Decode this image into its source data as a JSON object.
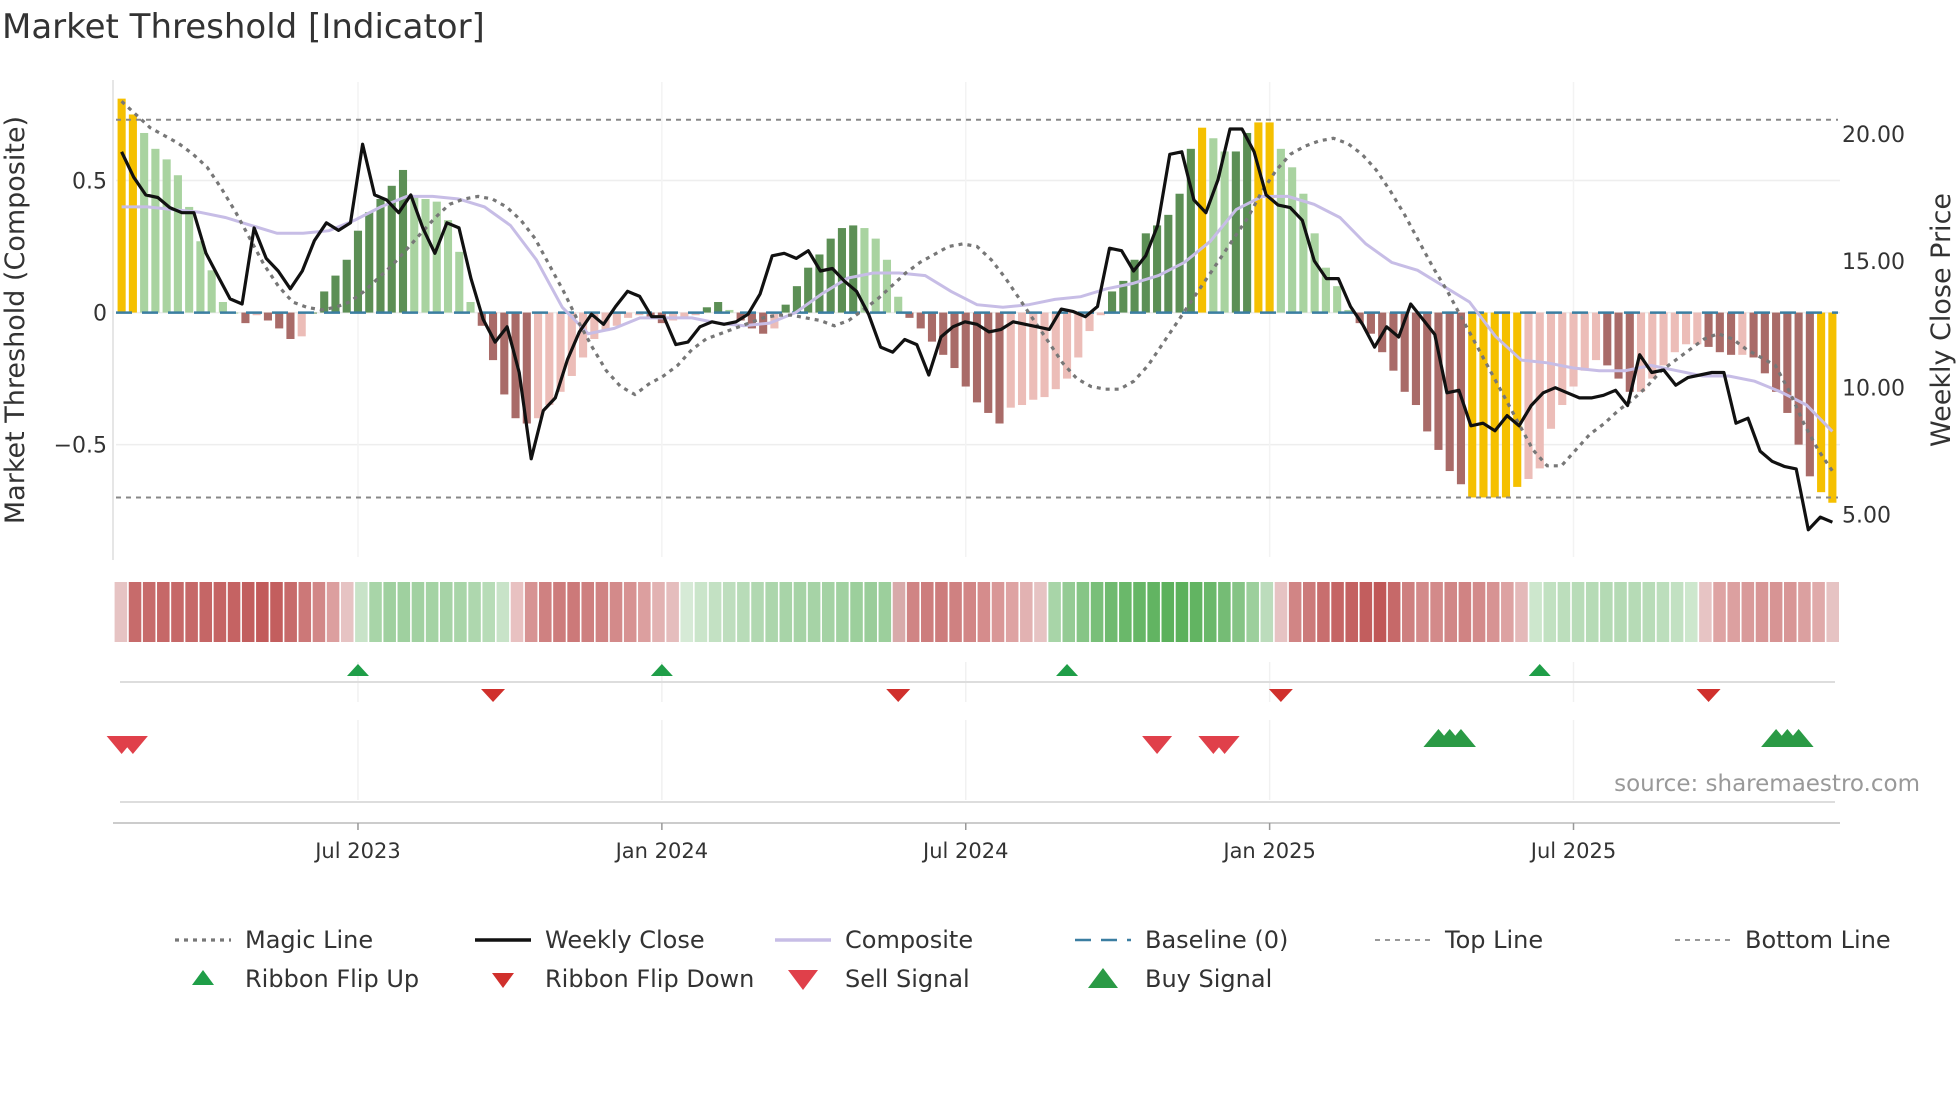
{
  "chart_data": {
    "type": "composite-indicator",
    "title": "Market Threshold [Indicator]",
    "ylabel_left": "Market Threshold (Composite)",
    "ylabel_right": "Weekly Close Price",
    "source": "source: sharemaestro.com",
    "ylim_left": [
      -0.88,
      0.82
    ],
    "ylim_right": [
      3.8,
      21.5
    ],
    "left_ticks": [
      {
        "v": 0.5,
        "label": "0.5"
      },
      {
        "v": 0,
        "label": "0"
      },
      {
        "v": -0.5,
        "label": "−0.5"
      }
    ],
    "right_ticks": [
      {
        "v": 20,
        "label": "20.00"
      },
      {
        "v": 15,
        "label": "15.00"
      },
      {
        "v": 10,
        "label": "10.00"
      },
      {
        "v": 5,
        "label": "5.00"
      }
    ],
    "x_ticks": [
      {
        "i": 21,
        "label": "Jul 2023"
      },
      {
        "i": 48,
        "label": "Jan 2024"
      },
      {
        "i": 75,
        "label": "Jul 2024"
      },
      {
        "i": 102,
        "label": "Jan 2025"
      },
      {
        "i": 129,
        "label": "Jul 2025"
      }
    ],
    "top_line": 0.73,
    "bottom_line": -0.7,
    "composite_bars": [
      0.81,
      0.75,
      0.68,
      0.62,
      0.58,
      0.52,
      0.4,
      0.27,
      0.16,
      0.04,
      0,
      -0.04,
      -0.01,
      -0.03,
      -0.06,
      -0.1,
      -0.09,
      0,
      0.08,
      0.14,
      0.2,
      0.31,
      0.38,
      0.43,
      0.48,
      0.54,
      0.44,
      0.43,
      0.42,
      0.35,
      0.23,
      0.04,
      -0.05,
      -0.18,
      -0.31,
      -0.4,
      -0.42,
      -0.4,
      -0.35,
      -0.3,
      -0.24,
      -0.17,
      -0.1,
      -0.07,
      -0.05,
      -0.02,
      -0.01,
      -0.02,
      -0.04,
      -0.03,
      -0.02,
      -0.01,
      0.02,
      0.04,
      0.01,
      -0.03,
      -0.06,
      -0.08,
      -0.06,
      0.03,
      0.1,
      0.17,
      0.22,
      0.28,
      0.32,
      0.33,
      0.32,
      0.28,
      0.2,
      0.06,
      -0.02,
      -0.06,
      -0.11,
      -0.16,
      -0.21,
      -0.28,
      -0.34,
      -0.38,
      -0.42,
      -0.36,
      -0.35,
      -0.33,
      -0.32,
      -0.29,
      -0.25,
      -0.17,
      -0.07,
      -0.01,
      0.08,
      0.12,
      0.2,
      0.3,
      0.33,
      0.37,
      0.45,
      0.62,
      0.7,
      0.66,
      0.61,
      0.61,
      0.68,
      0.72,
      0.72,
      0.62,
      0.55,
      0.45,
      0.3,
      0.17,
      0.1,
      0.01,
      -0.04,
      -0.08,
      -0.15,
      -0.22,
      -0.3,
      -0.35,
      -0.45,
      -0.52,
      -0.6,
      -0.65,
      -0.7,
      -0.7,
      -0.7,
      -0.7,
      -0.66,
      -0.63,
      -0.59,
      -0.44,
      -0.35,
      -0.28,
      -0.22,
      -0.18,
      -0.2,
      -0.25,
      -0.3,
      -0.3,
      -0.25,
      -0.2,
      -0.15,
      -0.12,
      -0.12,
      -0.13,
      -0.15,
      -0.16,
      -0.16,
      -0.17,
      -0.23,
      -0.3,
      -0.38,
      -0.5,
      -0.62,
      -0.68,
      -0.72
    ],
    "weekly_close": [
      19.3,
      18.3,
      17.6,
      17.5,
      17.1,
      16.9,
      16.9,
      15.3,
      14.4,
      13.5,
      13.3,
      16.3,
      15.1,
      14.6,
      13.9,
      14.6,
      15.8,
      16.5,
      16.2,
      16.5,
      19.6,
      17.6,
      17.4,
      16.9,
      17.6,
      16.3,
      15.3,
      16.5,
      16.3,
      14.3,
      12.7,
      11.8,
      12.4,
      10.6,
      7.2,
      9.1,
      9.6,
      11.1,
      12.2,
      12.9,
      12.5,
      13.2,
      13.8,
      13.6,
      12.8,
      12.8,
      11.7,
      11.8,
      12.4,
      12.6,
      12.5,
      12.6,
      12.9,
      13.7,
      15.2,
      15.3,
      15.1,
      15.4,
      14.6,
      14.7,
      14.2,
      13.8,
      12.9,
      11.6,
      11.4,
      11.9,
      11.7,
      10.5,
      12.0,
      12.4,
      12.6,
      12.5,
      12.2,
      12.3,
      12.6,
      12.5,
      12.4,
      12.3,
      13.1,
      13.0,
      12.8,
      13.2,
      15.5,
      15.4,
      14.6,
      15.2,
      16.4,
      19.2,
      19.3,
      17.4,
      16.9,
      18.2,
      20.2,
      20.2,
      19.3,
      17.6,
      17.2,
      17.1,
      16.6,
      15.0,
      14.3,
      14.3,
      13.2,
      12.5,
      11.6,
      12.4,
      12.0,
      13.3,
      12.7,
      12.1,
      9.8,
      9.9,
      8.5,
      8.6,
      8.3,
      8.9,
      8.5,
      9.3,
      9.8,
      10.0,
      9.8,
      9.6,
      9.6,
      9.7,
      9.9,
      9.3,
      11.3,
      10.6,
      10.7,
      10.1,
      10.4,
      10.5,
      10.6,
      10.6,
      8.6,
      8.8,
      7.5,
      7.1,
      6.9,
      6.8,
      4.4,
      4.9,
      4.7
    ],
    "magic_line": [
      0.8,
      0.75,
      0.7,
      0.67,
      0.64,
      0.6,
      0.55,
      0.47,
      0.38,
      0.28,
      0.18,
      0.1,
      0.04,
      0.02,
      0.01,
      0.02,
      0.04,
      0.08,
      0.13,
      0.18,
      0.24,
      0.3,
      0.36,
      0.41,
      0.43,
      0.44,
      0.43,
      0.4,
      0.35,
      0.28,
      0.18,
      0.08,
      -0.03,
      -0.13,
      -0.22,
      -0.28,
      -0.31,
      -0.27,
      -0.24,
      -0.2,
      -0.14,
      -0.1,
      -0.08,
      -0.06,
      -0.04,
      -0.02,
      -0.01,
      -0.01,
      -0.02,
      -0.03,
      -0.05,
      -0.03,
      0.01,
      0.05,
      0.1,
      0.15,
      0.19,
      0.22,
      0.25,
      0.26,
      0.25,
      0.2,
      0.13,
      0.05,
      -0.03,
      -0.11,
      -0.19,
      -0.25,
      -0.28,
      -0.29,
      -0.29,
      -0.26,
      -0.2,
      -0.12,
      -0.04,
      0.04,
      0.12,
      0.2,
      0.28,
      0.36,
      0.46,
      0.54,
      0.6,
      0.63,
      0.65,
      0.66,
      0.64,
      0.6,
      0.54,
      0.46,
      0.37,
      0.27,
      0.17,
      0.08,
      -0.02,
      -0.12,
      -0.22,
      -0.32,
      -0.42,
      -0.52,
      -0.58,
      -0.58,
      -0.52,
      -0.46,
      -0.42,
      -0.37,
      -0.33,
      -0.28,
      -0.22,
      -0.18,
      -0.14,
      -0.1,
      -0.08,
      -0.1,
      -0.14,
      -0.17,
      -0.2,
      -0.3,
      -0.42,
      -0.52,
      -0.6
    ],
    "composite_line": [
      0.4,
      0.4,
      0.39,
      0.38,
      0.36,
      0.33,
      0.3,
      0.3,
      0.31,
      0.35,
      0.4,
      0.44,
      0.44,
      0.43,
      0.4,
      0.33,
      0.2,
      0.02,
      -0.08,
      -0.06,
      -0.02,
      -0.02,
      -0.02,
      -0.04,
      -0.05,
      -0.04,
      0,
      0.07,
      0.13,
      0.15,
      0.15,
      0.14,
      0.08,
      0.03,
      0.02,
      0.03,
      0.05,
      0.06,
      0.09,
      0.11,
      0.14,
      0.19,
      0.27,
      0.39,
      0.44,
      0.44,
      0.41,
      0.36,
      0.26,
      0.19,
      0.16,
      0.1,
      0.04,
      -0.09,
      -0.18,
      -0.19,
      -0.21,
      -0.22,
      -0.22,
      -0.2,
      -0.22,
      -0.24,
      -0.24,
      -0.26,
      -0.3,
      -0.35,
      -0.45
    ],
    "ribbon_colors": [
      "#e6c3c3",
      "#c76b6b",
      "#c76b6b",
      "#c66868",
      "#c66868",
      "#c66868",
      "#c56666",
      "#c56464",
      "#c56363",
      "#c25e5e",
      "#c25b5b",
      "#c35e5e",
      "#c76b6b",
      "#cc7878",
      "#d28787",
      "#dc9f9f",
      "#e6c3c3",
      "#c8e3c8",
      "#a8d5a8",
      "#9fd09f",
      "#9fd09f",
      "#a1d1a1",
      "#a4d3a4",
      "#a6d3a6",
      "#a8d5a8",
      "#aed7ae",
      "#b7dcb7",
      "#c8e3c8",
      "#e8c1c1",
      "#d79393",
      "#cf8181",
      "#cd7c7c",
      "#cc7979",
      "#ce7f7f",
      "#d08383",
      "#d38a8a",
      "#d79292",
      "#dc9f9f",
      "#e2b2b2",
      "#e5bdbd",
      "#d6ead6",
      "#cae5ca",
      "#c3e1c3",
      "#bedebe",
      "#b8dcb8",
      "#b1d8b1",
      "#acd6ac",
      "#a8d4a8",
      "#a6d3a6",
      "#a6d3a6",
      "#a4d2a4",
      "#a1d1a1",
      "#9ccf9c",
      "#9acd9a",
      "#9ccf9c",
      "#d8aaaa",
      "#d08484",
      "#cd7d7d",
      "#cd7c7c",
      "#cf8181",
      "#d28686",
      "#d58c8c",
      "#d99797",
      "#dea3a3",
      "#e2b2b2",
      "#e6c3c3",
      "#a8d5a8",
      "#94cb94",
      "#86c586",
      "#79bf79",
      "#6fba6f",
      "#6ab86a",
      "#66b666",
      "#62b462",
      "#5cb15c",
      "#5cb15c",
      "#62b462",
      "#6ab86a",
      "#75bc75",
      "#85c485",
      "#9ccf9c",
      "#bcdcbc",
      "#e6c3c3",
      "#d18585",
      "#cc7a7a",
      "#c86e6e",
      "#c56565",
      "#c46262",
      "#c25e5e",
      "#c05757",
      "#c66969",
      "#ce7f7f",
      "#d38a8a",
      "#d38a8a",
      "#d18686",
      "#d08383",
      "#d38a8a",
      "#d79393",
      "#dda2a2",
      "#e4b9b9",
      "#cde7cd",
      "#c1e1c1",
      "#bcdebc",
      "#b8dcb8",
      "#b6dbb6",
      "#b4dab4",
      "#b4dab4",
      "#b6dbb6",
      "#b8dcb8",
      "#bcdebc",
      "#c2e1c2",
      "#cde7cd",
      "#e7c4c4",
      "#dea3a3",
      "#dca0a0",
      "#d99a9a",
      "#d89696",
      "#d79494",
      "#d89696",
      "#dba0a0",
      "#e0aaaa",
      "#e6c3c3"
    ],
    "ribbon_flip_up": [
      21,
      48,
      84,
      126
    ],
    "ribbon_flip_down": [
      33,
      69,
      103,
      141
    ],
    "sell_signals": [
      0,
      1,
      92,
      97,
      98
    ],
    "buy_signals": [
      117,
      118,
      119,
      147,
      148,
      149
    ],
    "legend": [
      {
        "label": "Magic Line",
        "style": "dotted",
        "color": "#777777"
      },
      {
        "label": "Weekly Close",
        "style": "solid",
        "color": "#111111"
      },
      {
        "label": "Composite",
        "style": "solid",
        "color": "#c7bde6"
      },
      {
        "label": "Baseline (0)",
        "style": "dashed",
        "color": "#3b7ea1"
      },
      {
        "label": "Top Line",
        "style": "dashed-thin",
        "color": "#999999"
      },
      {
        "label": "Bottom Line",
        "style": "dashed-thin",
        "color": "#999999"
      },
      {
        "label": "Ribbon Flip Up",
        "style": "tri-up-small",
        "color": "#1f9e48"
      },
      {
        "label": "Ribbon Flip Down",
        "style": "tri-down-small",
        "color": "#d0302c"
      },
      {
        "label": "Sell Signal",
        "style": "tri-down",
        "color": "#e0404a"
      },
      {
        "label": "Buy Signal",
        "style": "tri-up",
        "color": "#2a9a45"
      }
    ],
    "colors": {
      "extreme": "#f5c000",
      "pos_dark": "#5c8f55",
      "pos_light": "#a9d3a0",
      "neg_dark": "#a96b68",
      "neg_light": "#ecbdb8",
      "close": "#111111",
      "composite": "#c7bde6",
      "magic": "#777777",
      "baseline": "#3b7ea1"
    }
  }
}
